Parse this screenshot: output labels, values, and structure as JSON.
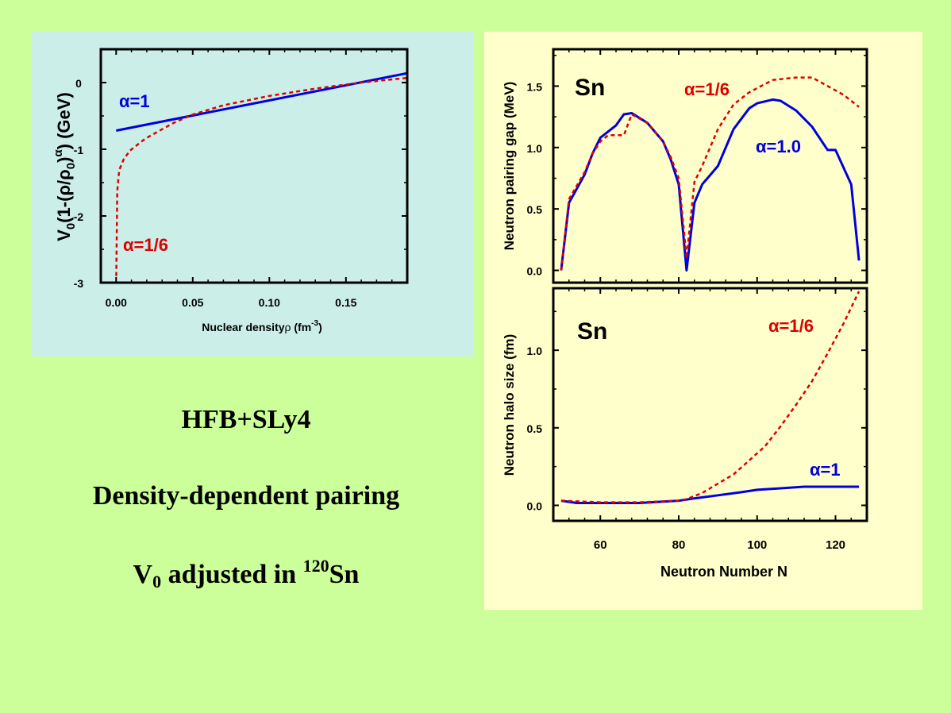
{
  "captions": {
    "line1": "HFB+SLy4",
    "line2": "Density-dependent pairing",
    "line3_a": "V",
    "line3_sub": "0",
    "line3_b": " adjusted in ",
    "line3_sup": "120",
    "line3_c": "Sn"
  },
  "chart_data": [
    {
      "type": "line",
      "title": "",
      "xlabel": "Nuclear density",
      "xlabel_symbol": "ρ",
      "xlabel_unit": " (fm",
      "xlabel_unit_sup": "-3",
      "xlabel_unit_end": ")",
      "ylabel_parts": [
        "V",
        "0",
        "(1-(ρ/ρ",
        "0",
        ")",
        "α",
        ") (GeV)"
      ],
      "xlim": [
        -0.01,
        0.19
      ],
      "ylim": [
        -3,
        0.5
      ],
      "xticks": [
        0.0,
        0.05,
        0.1,
        0.15
      ],
      "xtick_labels": [
        "0.00",
        "0.05",
        "0.10",
        "0.15"
      ],
      "yticks": [
        0,
        -1,
        -2,
        -3
      ],
      "ytick_labels": [
        "0",
        "-1",
        "-2",
        "-3"
      ],
      "series": [
        {
          "name": "α=1",
          "color": "#0000DD",
          "style": "solid",
          "x": [
            0.0,
            0.19
          ],
          "y": [
            -0.72,
            0.14
          ]
        },
        {
          "name": "α=1/6",
          "color": "#DD0000",
          "style": "dashed",
          "x": [
            0.0001,
            0.0007,
            0.002,
            0.005,
            0.009,
            0.019,
            0.03,
            0.038,
            0.05,
            0.07,
            0.1,
            0.13,
            0.16,
            0.19
          ],
          "y": [
            -2.9,
            -1.63,
            -1.31,
            -1.15,
            -1.02,
            -0.84,
            -0.7,
            -0.6,
            -0.48,
            -0.34,
            -0.2,
            -0.09,
            0.0,
            0.07
          ]
        }
      ],
      "annotations": [
        {
          "text": "α=1",
          "color": "#0000DD"
        },
        {
          "text": "α=1/6",
          "color": "#DD0000"
        }
      ]
    },
    {
      "type": "line",
      "title": "",
      "xlabel": "",
      "ylabel": "Neutron pairing gap (MeV)",
      "xlim": [
        48,
        128
      ],
      "ylim": [
        -0.1,
        1.8
      ],
      "xticks": [
        60,
        80,
        100,
        120
      ],
      "yticks": [
        0.0,
        0.5,
        1.0,
        1.5
      ],
      "ytick_labels": [
        "0.0",
        "0.5",
        "1.0",
        "1.5"
      ],
      "series": [
        {
          "name": "α=1.0",
          "color": "#0000DD",
          "style": "solid",
          "x": [
            50,
            52,
            56,
            58,
            60,
            64,
            66,
            68,
            72,
            76,
            78,
            80,
            82,
            84,
            86,
            90,
            94,
            98,
            100,
            104,
            106,
            110,
            114,
            118,
            120,
            124,
            126
          ],
          "y": [
            0.0,
            0.55,
            0.78,
            0.95,
            1.08,
            1.18,
            1.27,
            1.28,
            1.2,
            1.05,
            0.9,
            0.7,
            0.0,
            0.55,
            0.7,
            0.85,
            1.15,
            1.32,
            1.36,
            1.39,
            1.38,
            1.3,
            1.17,
            0.98,
            0.98,
            0.7,
            0.08
          ]
        },
        {
          "name": "α=1/6",
          "color": "#DD0000",
          "style": "dashed",
          "x": [
            50,
            52,
            56,
            58,
            60,
            62,
            66,
            68,
            72,
            76,
            78,
            80,
            82,
            84,
            86,
            88,
            90,
            94,
            98,
            104,
            110,
            114,
            118,
            122,
            126
          ],
          "y": [
            0.0,
            0.58,
            0.8,
            0.95,
            1.05,
            1.1,
            1.1,
            1.27,
            1.2,
            1.05,
            0.92,
            0.75,
            0.1,
            0.72,
            0.85,
            1.0,
            1.15,
            1.35,
            1.45,
            1.55,
            1.57,
            1.57,
            1.5,
            1.43,
            1.33
          ]
        }
      ],
      "annotations": [
        {
          "text": "Sn",
          "color": "#000000"
        },
        {
          "text": "α=1/6",
          "color": "#DD0000"
        },
        {
          "text": "α=1.0",
          "color": "#0000DD"
        }
      ]
    },
    {
      "type": "line",
      "title": "",
      "xlabel": "Neutron Number N",
      "ylabel": "Neutron halo size (fm)",
      "xlim": [
        48,
        128
      ],
      "ylim": [
        -0.1,
        1.4
      ],
      "xticks": [
        60,
        80,
        100,
        120
      ],
      "xtick_labels": [
        "60",
        "80",
        "100",
        "120"
      ],
      "yticks": [
        0.0,
        0.5,
        1.0
      ],
      "ytick_labels": [
        "0.0",
        "0.5",
        "1.0"
      ],
      "series": [
        {
          "name": "α=1",
          "color": "#0000DD",
          "style": "solid",
          "x": [
            50,
            54,
            60,
            70,
            80,
            84,
            90,
            96,
            100,
            106,
            112,
            120,
            126
          ],
          "y": [
            0.03,
            0.015,
            0.015,
            0.015,
            0.03,
            0.045,
            0.065,
            0.085,
            0.1,
            0.11,
            0.12,
            0.12,
            0.12
          ]
        },
        {
          "name": "α=1/6",
          "color": "#DD0000",
          "style": "dashed",
          "x": [
            50,
            60,
            70,
            80,
            82,
            86,
            90,
            94,
            98,
            102,
            106,
            110,
            114,
            118,
            122,
            126
          ],
          "y": [
            0.03,
            0.02,
            0.02,
            0.03,
            0.04,
            0.08,
            0.14,
            0.2,
            0.29,
            0.38,
            0.51,
            0.65,
            0.8,
            0.98,
            1.17,
            1.38
          ]
        }
      ],
      "annotations": [
        {
          "text": "Sn",
          "color": "#000000"
        },
        {
          "text": "α=1/6",
          "color": "#DD0000"
        },
        {
          "text": "α=1",
          "color": "#0000DD"
        }
      ]
    }
  ]
}
